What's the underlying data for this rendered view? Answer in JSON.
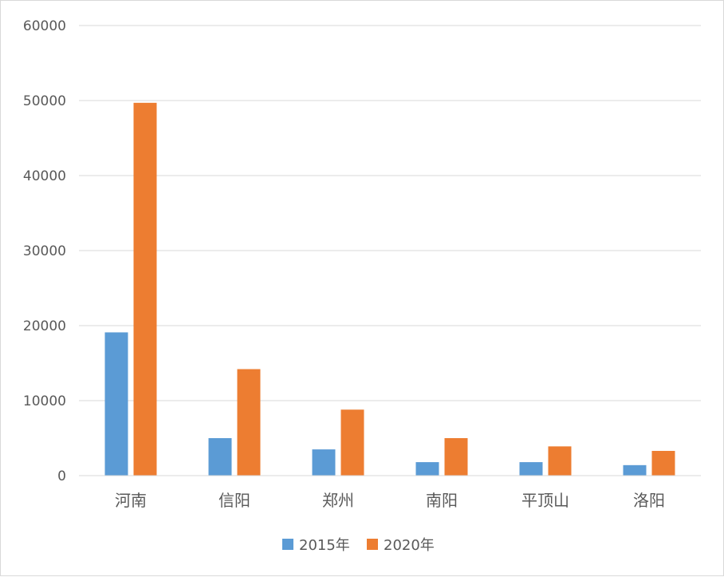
{
  "chart_data": {
    "type": "bar",
    "categories": [
      "河南",
      "信阳",
      "郑州",
      "南阳",
      "平顶山",
      "洛阳"
    ],
    "series": [
      {
        "name": "2015年",
        "values": [
          19100,
          5000,
          3500,
          1800,
          1800,
          1400
        ],
        "color": "#5b9bd5"
      },
      {
        "name": "2020年",
        "values": [
          49700,
          14200,
          8800,
          5000,
          3900,
          3300
        ],
        "color": "#ed7d31"
      }
    ],
    "ylim": [
      0,
      60000
    ],
    "yticks": [
      "0",
      "10000",
      "20000",
      "30000",
      "40000",
      "50000",
      "60000"
    ],
    "grid": true,
    "legend_position": "bottom",
    "gridline_color": "#d9d9d9"
  }
}
